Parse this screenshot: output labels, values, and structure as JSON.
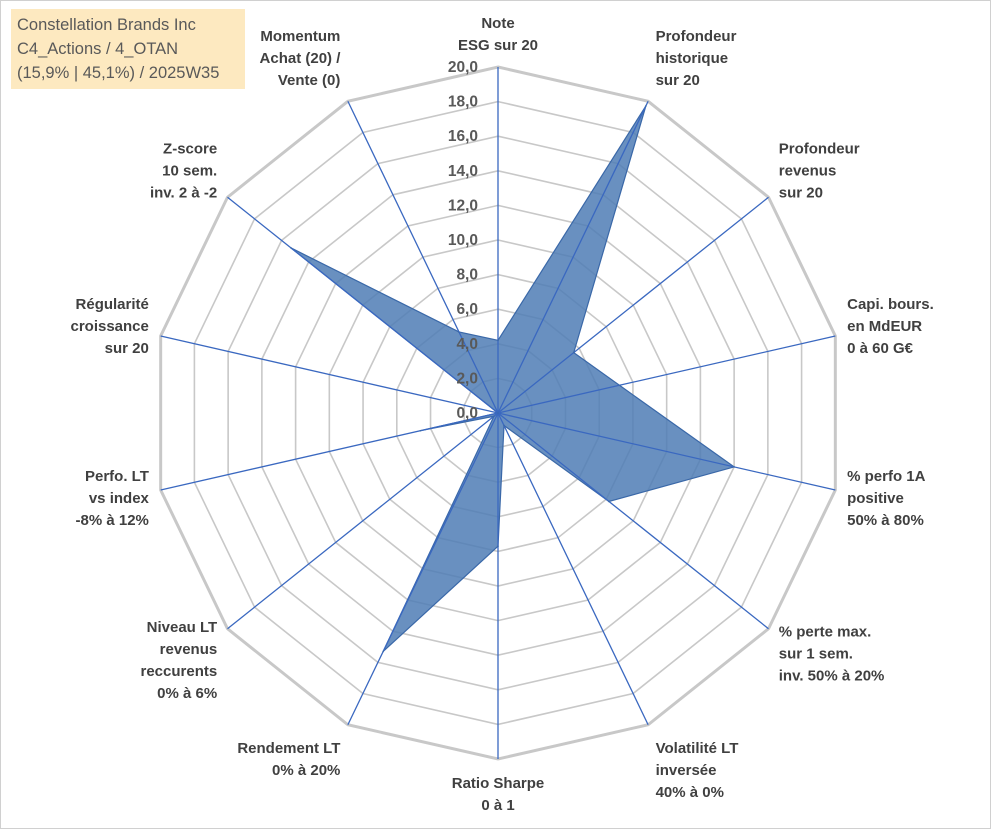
{
  "title": {
    "lines": [
      "Constellation Brands Inc",
      "C4_Actions / 4_OTAN",
      "(15,9% | 45,1%) / 2025W35"
    ]
  },
  "colors": {
    "fill": "#4f7db5",
    "stroke": "#3a68a8",
    "grid": "#c8c8c8",
    "spoke": "#3a68c0",
    "title_bg": "#fde9c0"
  },
  "chart_data": {
    "type": "radar",
    "rmin": 0,
    "rmax": 20,
    "tick_step": 2,
    "tick_labels": [
      "0,0",
      "2,0",
      "4,0",
      "6,0",
      "8,0",
      "10,0",
      "12,0",
      "14,0",
      "16,0",
      "18,0",
      "20,0"
    ],
    "axes": [
      {
        "label": [
          "Note",
          "ESG sur 20"
        ],
        "value": 4.2
      },
      {
        "label": [
          "Profondeur",
          "historique",
          "sur 20"
        ],
        "value": 19.7
      },
      {
        "label": [
          "Profondeur",
          "revenus",
          "sur 20"
        ],
        "value": 5.6
      },
      {
        "label": [
          "Capi. bours.",
          "en MdEUR",
          "0 à 60 G€"
        ],
        "value": 7.2
      },
      {
        "label": [
          "% perfo 1A",
          "positive",
          "50% à 80%"
        ],
        "value": 14.0
      },
      {
        "label": [
          "% perte max.",
          "sur 1 sem.",
          "inv. 50% à 20%"
        ],
        "value": 8.2
      },
      {
        "label": [
          "Volatilité LT",
          "inversée",
          "40% à 0%"
        ],
        "value": 0.8
      },
      {
        "label": [
          "Ratio Sharpe",
          "0 à 1"
        ],
        "value": 7.7
      },
      {
        "label": [
          "Rendement LT",
          "0% à 20%"
        ],
        "value": 15.3
      },
      {
        "label": [
          "Niveau LT",
          "revenus",
          "reccurents",
          "0% à 6%"
        ],
        "value": 0.3
      },
      {
        "label": [
          "Perfo. LT",
          "vs index",
          "-8% à 12%"
        ],
        "value": 4.6
      },
      {
        "label": [
          "Régularité",
          "croissance",
          "sur 20"
        ],
        "value": 0.0
      },
      {
        "label": [
          "Z-score",
          "10 sem.",
          "inv. 2 à -2"
        ],
        "value": 15.3
      },
      {
        "label": [
          "Momentum",
          "Achat (20) /",
          "Vente (0)"
        ],
        "value": 5.2
      }
    ]
  }
}
